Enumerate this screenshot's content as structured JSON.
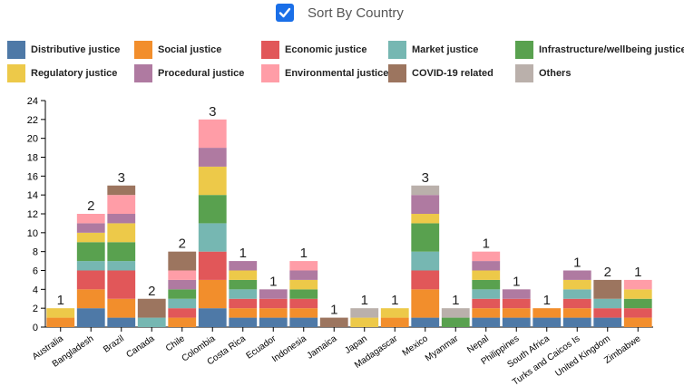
{
  "controls": {
    "sort_checkbox": {
      "label": "Sort By Country",
      "checked": true
    }
  },
  "colors": {
    "Distributive justice": "#4e79a7",
    "Social justice": "#f28e2c",
    "Economic justice": "#e15759",
    "Market justice": "#76b7b2",
    "Infrastructure/wellbeing justice": "#59a14f",
    "Regulatory justice": "#edc949",
    "Procedural justice": "#af7aa1",
    "Environmental justice": "#ff9da7",
    "COVID-19 related": "#9c755f",
    "Others": "#bab0ab"
  },
  "chart_data": {
    "type": "bar",
    "stacked": true,
    "ylim": [
      0,
      24
    ],
    "yticks": [
      0,
      2,
      4,
      6,
      8,
      10,
      12,
      14,
      16,
      18,
      20,
      22,
      24
    ],
    "categories": [
      "Australia",
      "Bangladesh",
      "Brazil",
      "Canada",
      "Chile",
      "Colombia",
      "Costa Rica",
      "Ecuador",
      "Indonesia",
      "Jamaica",
      "Japan",
      "Madagascar",
      "Mexico",
      "Myanmar",
      "Nepal",
      "Philippines",
      "South Africa",
      "Turks and Caicos Is",
      "United Kingdom",
      "Zimbabwe"
    ],
    "top_labels": [
      1,
      2,
      3,
      2,
      2,
      3,
      1,
      1,
      1,
      1,
      1,
      1,
      3,
      1,
      1,
      1,
      1,
      1,
      2,
      1
    ],
    "legend": [
      "Distributive justice",
      "Social justice",
      "Economic justice",
      "Market justice",
      "Infrastructure/wellbeing justice",
      "Regulatory justice",
      "Procedural justice",
      "Environmental justice",
      "COVID-19 related",
      "Others"
    ],
    "series": [
      {
        "name": "Distributive justice",
        "values": [
          0,
          2,
          1,
          0,
          0,
          2,
          1,
          1,
          1,
          0,
          0,
          0,
          1,
          0,
          1,
          1,
          1,
          1,
          1,
          0
        ]
      },
      {
        "name": "Social justice",
        "values": [
          1,
          2,
          2,
          0,
          1,
          3,
          1,
          1,
          1,
          0,
          0,
          1,
          3,
          0,
          1,
          1,
          1,
          1,
          0,
          1
        ]
      },
      {
        "name": "Economic justice",
        "values": [
          0,
          2,
          3,
          0,
          1,
          3,
          1,
          1,
          1,
          0,
          0,
          0,
          2,
          0,
          1,
          1,
          0,
          1,
          1,
          1
        ]
      },
      {
        "name": "Market justice",
        "values": [
          0,
          1,
          1,
          1,
          1,
          3,
          1,
          0,
          0,
          0,
          0,
          0,
          2,
          0,
          1,
          0,
          0,
          1,
          1,
          0
        ]
      },
      {
        "name": "Infrastructure/wellbeing justice",
        "values": [
          0,
          2,
          2,
          0,
          1,
          3,
          1,
          0,
          1,
          0,
          0,
          0,
          3,
          1,
          1,
          0,
          0,
          0,
          0,
          1
        ]
      },
      {
        "name": "Regulatory justice",
        "values": [
          1,
          1,
          2,
          0,
          0,
          3,
          1,
          0,
          1,
          0,
          1,
          1,
          1,
          0,
          1,
          0,
          0,
          1,
          0,
          1
        ]
      },
      {
        "name": "Procedural justice",
        "values": [
          0,
          1,
          1,
          0,
          1,
          2,
          1,
          1,
          1,
          0,
          0,
          0,
          2,
          0,
          1,
          1,
          0,
          1,
          0,
          0
        ]
      },
      {
        "name": "Environmental justice",
        "values": [
          0,
          1,
          2,
          0,
          1,
          3,
          0,
          0,
          1,
          0,
          0,
          0,
          0,
          0,
          1,
          0,
          0,
          0,
          0,
          1
        ]
      },
      {
        "name": "COVID-19 related",
        "values": [
          0,
          0,
          1,
          2,
          2,
          0,
          0,
          0,
          0,
          1,
          0,
          0,
          0,
          0,
          0,
          0,
          0,
          0,
          2,
          0
        ]
      },
      {
        "name": "Others",
        "values": [
          0,
          0,
          0,
          0,
          0,
          0,
          0,
          0,
          0,
          0,
          1,
          0,
          1,
          1,
          0,
          0,
          0,
          0,
          0,
          0
        ]
      }
    ]
  }
}
